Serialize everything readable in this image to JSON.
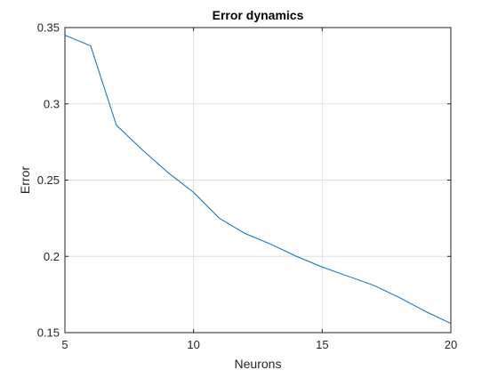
{
  "chart_data": {
    "type": "line",
    "title": "Error dynamics",
    "xlabel": "Neurons",
    "ylabel": "Error",
    "xlim": [
      5,
      20
    ],
    "ylim": [
      0.15,
      0.35
    ],
    "xticks": [
      5,
      10,
      15,
      20
    ],
    "xtick_labels": [
      "5",
      "10",
      "15",
      "20"
    ],
    "yticks": [
      0.15,
      0.2,
      0.25,
      0.3,
      0.35
    ],
    "ytick_labels": [
      "0.15",
      "0.2",
      "0.25",
      "0.3",
      "0.35"
    ],
    "grid": true,
    "series": [
      {
        "color": "#0072bd",
        "x": [
          5,
          6,
          7,
          8,
          9,
          10,
          11,
          12,
          13,
          14,
          15,
          16,
          17,
          18,
          19,
          20
        ],
        "y": [
          0.345,
          0.338,
          0.286,
          0.27,
          0.255,
          0.242,
          0.225,
          0.215,
          0.208,
          0.2,
          0.193,
          0.187,
          0.181,
          0.173,
          0.164,
          0.156
        ]
      }
    ]
  }
}
